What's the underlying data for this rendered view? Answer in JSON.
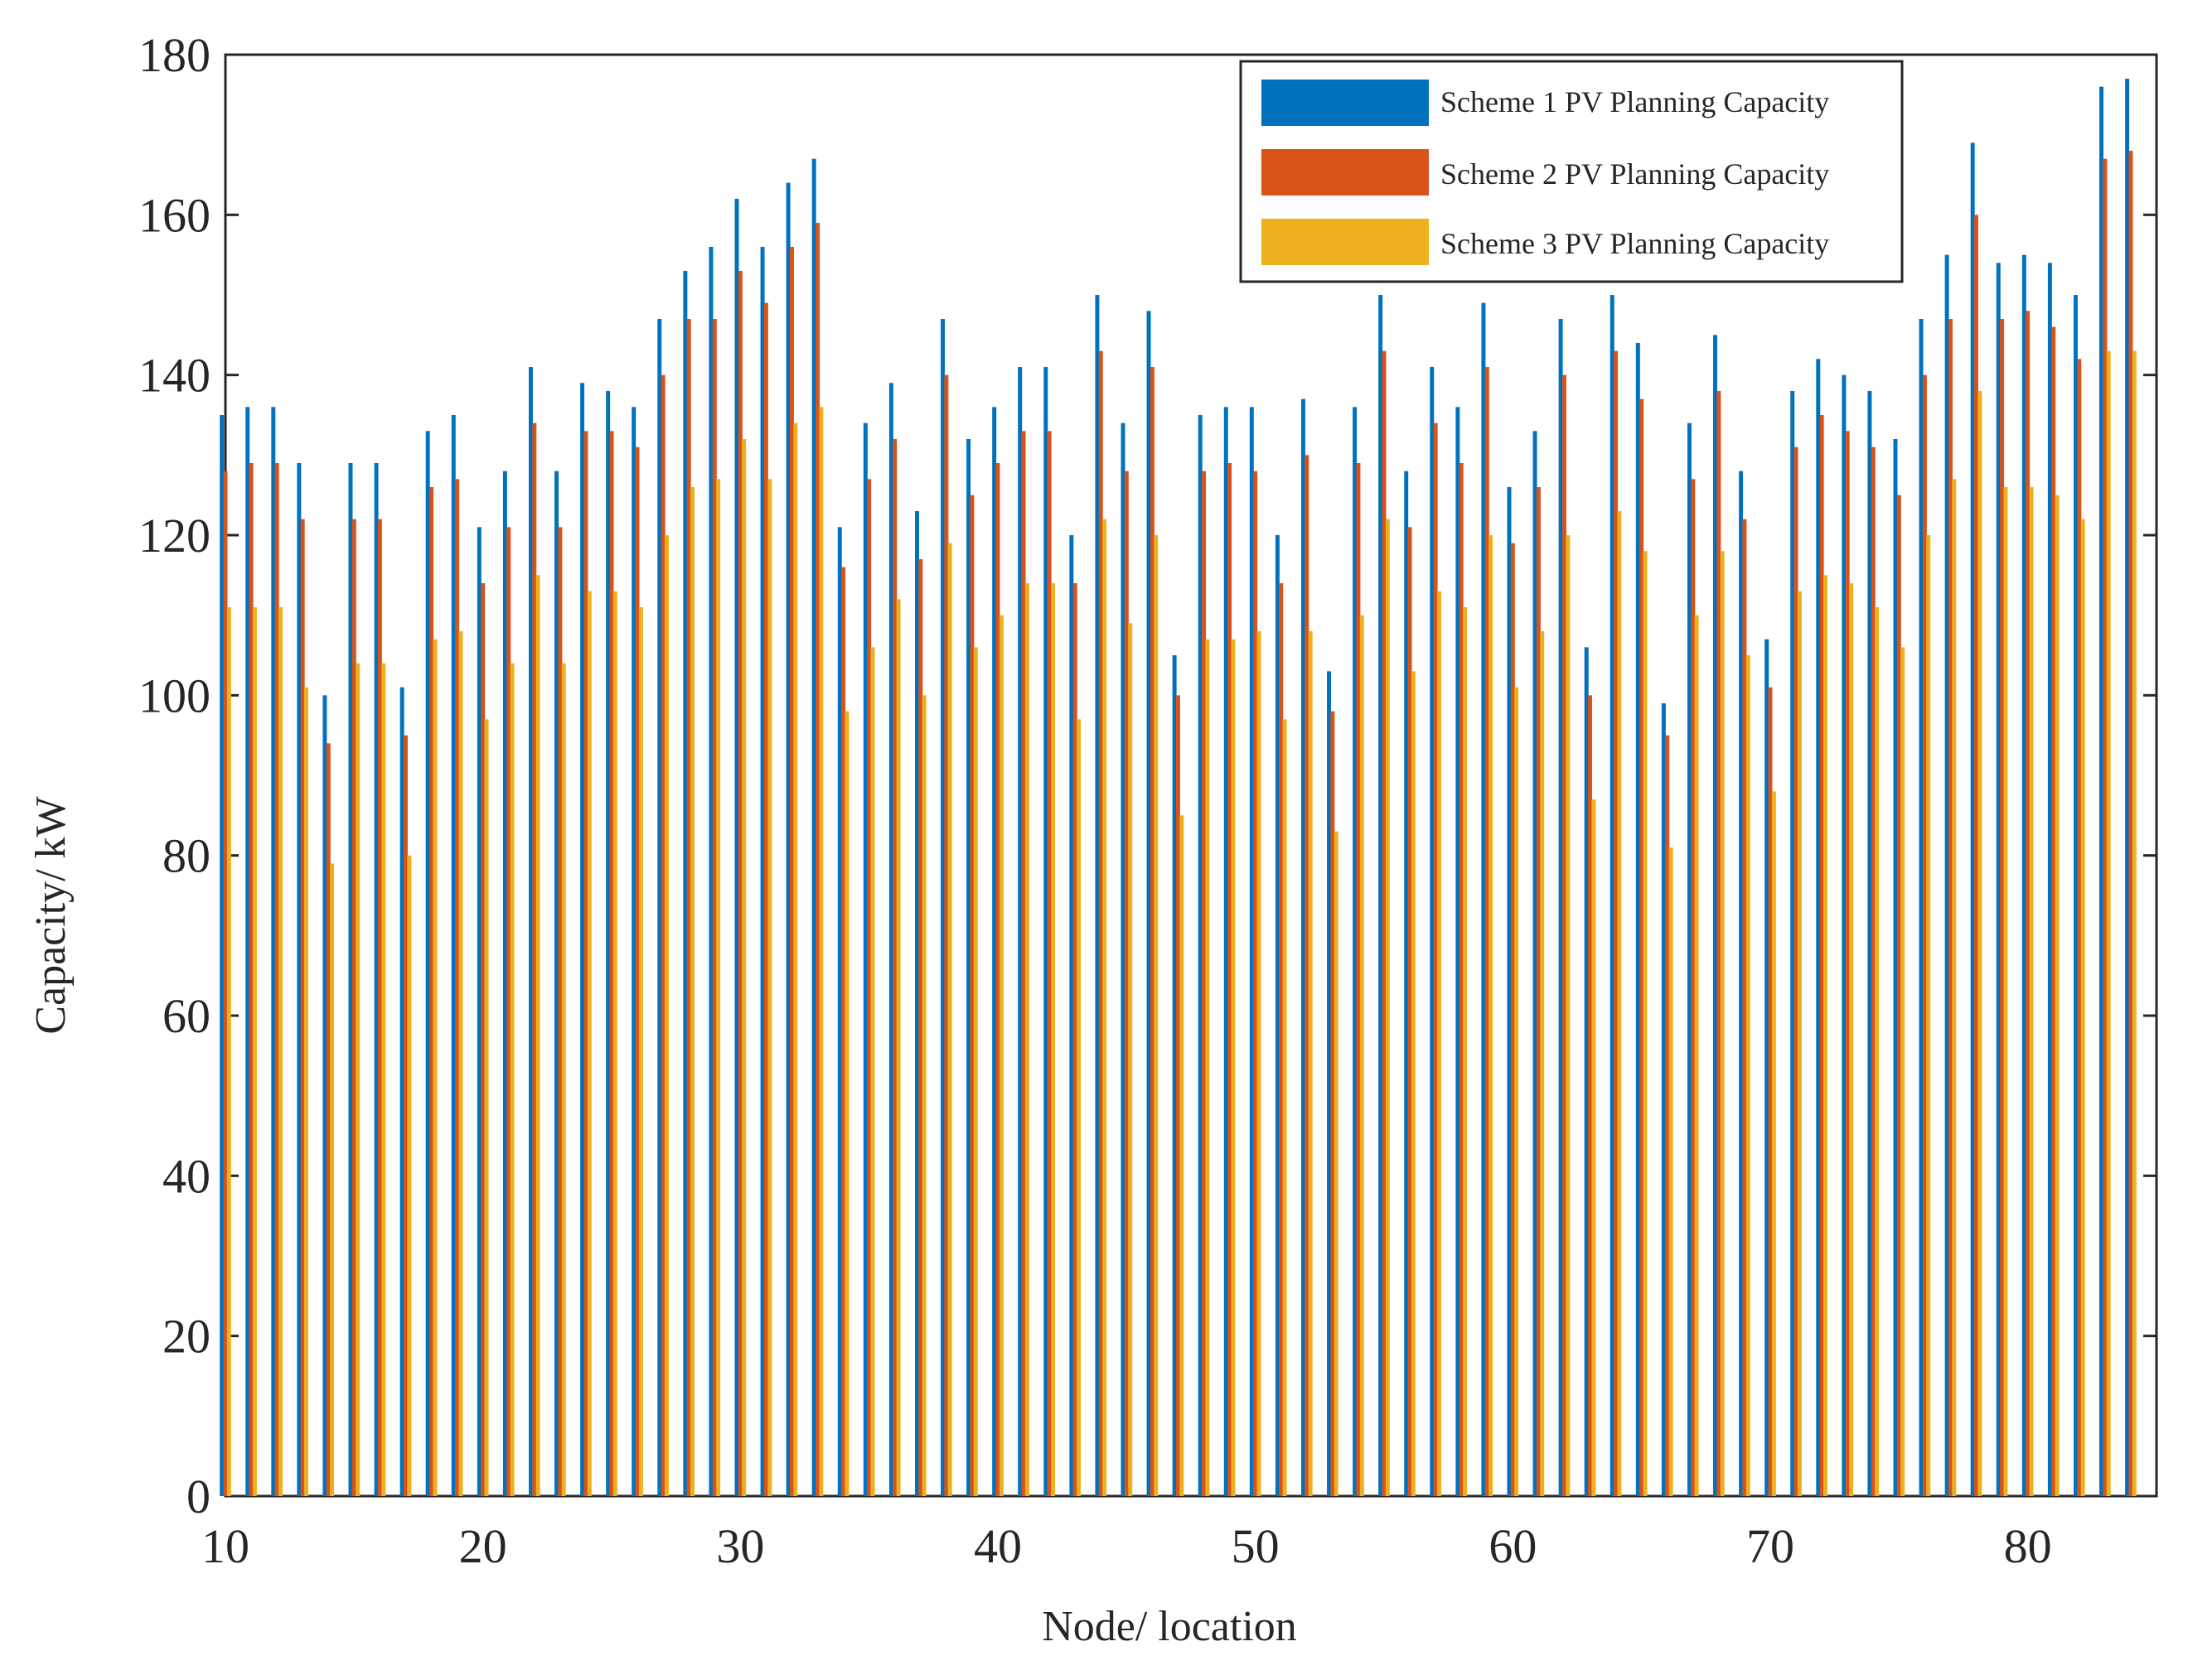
{
  "chart_data": {
    "type": "bar",
    "title": "",
    "xlabel": "Node/ location",
    "ylabel": "Capacity/ kW",
    "xlim": [
      10,
      85
    ],
    "ylim": [
      0,
      180
    ],
    "xticks": [
      10,
      20,
      30,
      40,
      50,
      60,
      70,
      80
    ],
    "yticks": [
      0,
      20,
      40,
      60,
      80,
      100,
      120,
      140,
      160,
      180
    ],
    "legend_position": "top-right",
    "categories": [
      10,
      11,
      12,
      13,
      14,
      15,
      16,
      17,
      18,
      19,
      20,
      21,
      22,
      23,
      24,
      25,
      26,
      27,
      28,
      29,
      30,
      31,
      32,
      33,
      34,
      35,
      36,
      37,
      38,
      39,
      40,
      41,
      42,
      43,
      44,
      45,
      46,
      47,
      48,
      49,
      50,
      51,
      52,
      53,
      54,
      55,
      56,
      57,
      58,
      59,
      60,
      61,
      62,
      63,
      64,
      65,
      66,
      67,
      68,
      69,
      70,
      71,
      72,
      73,
      74,
      75,
      76,
      77,
      78,
      79,
      80,
      81,
      82,
      83,
      84
    ],
    "series": [
      {
        "name": "Scheme 1 PV Planning Capacity",
        "color": "#0072BD",
        "values": [
          135,
          136,
          136,
          129,
          100,
          129,
          129,
          101,
          133,
          135,
          121,
          128,
          141,
          128,
          139,
          138,
          136,
          147,
          153,
          156,
          162,
          156,
          164,
          167,
          121,
          134,
          139,
          123,
          147,
          132,
          136,
          141,
          141,
          120,
          150,
          134,
          148,
          105,
          135,
          136,
          136,
          120,
          137,
          103,
          136,
          150,
          128,
          141,
          136,
          149,
          126,
          133,
          147,
          106,
          150,
          144,
          99,
          134,
          145,
          128,
          107,
          138,
          142,
          140,
          138,
          132,
          147,
          155,
          169,
          154,
          155,
          154,
          150,
          176,
          177
        ]
      },
      {
        "name": "Scheme 2 PV Planning Capacity",
        "color": "#D95319",
        "values": [
          128,
          129,
          129,
          122,
          94,
          122,
          122,
          95,
          126,
          127,
          114,
          121,
          134,
          121,
          133,
          133,
          131,
          140,
          147,
          147,
          153,
          149,
          156,
          159,
          116,
          127,
          132,
          117,
          140,
          125,
          129,
          133,
          133,
          114,
          143,
          128,
          141,
          100,
          128,
          129,
          128,
          114,
          130,
          98,
          129,
          143,
          121,
          134,
          129,
          141,
          119,
          126,
          140,
          100,
          143,
          137,
          95,
          127,
          138,
          122,
          101,
          131,
          135,
          133,
          131,
          125,
          140,
          147,
          160,
          147,
          148,
          146,
          142,
          167,
          168
        ]
      },
      {
        "name": "Scheme 3 PV Planning Capacity",
        "color": "#EDB120",
        "values": [
          111,
          111,
          111,
          101,
          79,
          104,
          104,
          80,
          107,
          108,
          97,
          104,
          115,
          104,
          113,
          113,
          111,
          120,
          126,
          127,
          132,
          127,
          134,
          136,
          98,
          106,
          112,
          100,
          119,
          106,
          110,
          114,
          114,
          97,
          122,
          109,
          120,
          85,
          107,
          107,
          108,
          97,
          108,
          83,
          110,
          122,
          103,
          113,
          111,
          120,
          101,
          108,
          120,
          87,
          123,
          118,
          81,
          110,
          118,
          105,
          88,
          113,
          115,
          114,
          111,
          106,
          120,
          127,
          138,
          126,
          126,
          125,
          122,
          143,
          143
        ]
      }
    ]
  }
}
